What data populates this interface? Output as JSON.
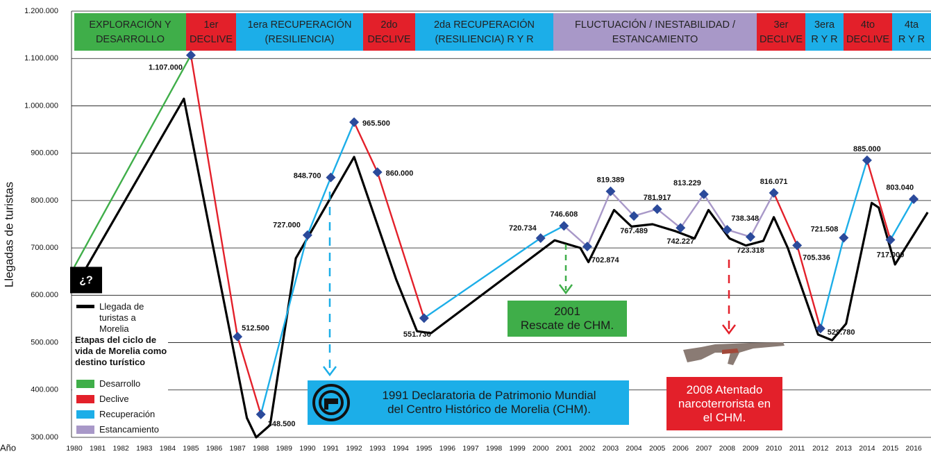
{
  "chart_data": {
    "type": "line",
    "y_label": "Llegadas de turistas",
    "x_label": "Año",
    "xlim": [
      1979.6,
      2016.7
    ],
    "xticks": [
      1980,
      1981,
      1982,
      1983,
      1984,
      1985,
      1986,
      1987,
      1988,
      1989,
      1990,
      1991,
      1992,
      1993,
      1994,
      1995,
      1996,
      1997,
      1998,
      1999,
      2000,
      2001,
      2002,
      2003,
      2004,
      2005,
      2006,
      2007,
      2008,
      2009,
      2010,
      2011,
      2012,
      2013,
      2014,
      2015,
      2016
    ],
    "ylim": [
      300000,
      1200000
    ],
    "yticks": [
      {
        "value": 300000,
        "label": "300.000"
      },
      {
        "value": 400000,
        "label": "400.000"
      },
      {
        "value": 500000,
        "label": "500.000"
      },
      {
        "value": 600000,
        "label": "600.000"
      },
      {
        "value": 700000,
        "label": "700.000"
      },
      {
        "value": 800000,
        "label": "800.000"
      },
      {
        "value": 900000,
        "label": "900.000"
      },
      {
        "value": 1000000,
        "label": "1.000.000"
      },
      {
        "value": 1100000,
        "label": "1.100.000"
      },
      {
        "value": 1200000,
        "label": "1.200.000"
      }
    ],
    "grid": true,
    "series": [
      {
        "name": "Llegada de turistas a Morelia",
        "color": "#000000",
        "x": [
          1980.3,
          1984.7,
          1987.4,
          1987.8,
          1988.4,
          1989.5,
          1992.0,
          1993.8,
          1994.7,
          1995.3,
          2000.6,
          2001.7,
          2002.05,
          2003.15,
          2003.9,
          2004.8,
          2005.8,
          2006.6,
          2007.2,
          2008.1,
          2008.8,
          2009.55,
          2010.0,
          2010.6,
          2011.9,
          2012.5,
          2013.1,
          2014.2,
          2014.5,
          2015.2,
          2016.6
        ],
        "values": [
          640000,
          1015000,
          341000,
          300000,
          326000,
          678000,
          892000,
          634000,
          524000,
          520000,
          716000,
          700000,
          670000,
          780000,
          745000,
          750000,
          735000,
          720000,
          780000,
          720000,
          705000,
          715000,
          765000,
          700000,
          517000,
          505000,
          540000,
          795000,
          785000,
          665000,
          775000
        ]
      },
      {
        "marker_color": "#2b4a9b",
        "x": [
          1980,
          1985,
          1987,
          1988,
          1990,
          1991,
          1992,
          1993,
          1995,
          2000,
          2001,
          2002,
          2003,
          2004,
          2005,
          2006,
          2007,
          2008,
          2009,
          2010,
          2011,
          2012,
          2013,
          2014,
          2015,
          2016
        ],
        "values": [
          660000,
          1107000,
          512500,
          348500,
          727000,
          848700,
          965500,
          860000,
          551736,
          720734,
          746608,
          702874,
          819389,
          767489,
          781917,
          742227,
          813229,
          738348,
          723318,
          816071,
          705336,
          529780,
          721508,
          885000,
          717000,
          803040
        ],
        "value_labels": [
          null,
          "1.107.000",
          "512.500",
          "348.500",
          "727.000",
          "848.700",
          "965.500",
          "860.000",
          "551.736",
          "720.734",
          "746.608",
          "702.874",
          "819.389",
          "767.489",
          "781.917",
          "742.227",
          "813.229",
          "738.348",
          "723.318",
          "816.071",
          "705.336",
          "529.780",
          "721.508",
          "885.000",
          "717.000",
          "803.040"
        ],
        "segment_colors": [
          "#3fae49",
          "#e3202a",
          "#e3202a",
          "#1caee8",
          "#1caee8",
          "#1caee8",
          "#e3202a",
          "#e3202a",
          "#1caee8",
          "#1caee8",
          "#a898c8",
          "#a898c8",
          "#a898c8",
          "#a898c8",
          "#a898c8",
          "#a898c8",
          "#a898c8",
          "#a898c8",
          "#a898c8",
          "#e3202a",
          "#e3202a",
          "#1caee8",
          "#1caee8",
          "#e3202a",
          "#1caee8"
        ]
      }
    ],
    "legend": {
      "title": "Etapas del ciclo de vida de Morelia como destino turístico",
      "items": [
        {
          "label": "Desarrollo",
          "color": "#3fae49"
        },
        {
          "label": "Declive",
          "color": "#e3202a"
        },
        {
          "label": "Recuperación",
          "color": "#1caee8"
        },
        {
          "label": "Estancamiento",
          "color": "#a898c8"
        }
      ]
    },
    "stages": [
      {
        "lines": [
          "EXPLORACIÓN Y",
          "DESARROLLO"
        ],
        "color": "#3fae49"
      },
      {
        "lines": [
          "1er",
          "DECLIVE"
        ],
        "color": "#e3202a"
      },
      {
        "lines": [
          "1era RECUPERACIÓN",
          "(RESILIENCIA)"
        ],
        "color": "#1caee8"
      },
      {
        "lines": [
          "2do",
          "DECLIVE"
        ],
        "color": "#e3202a"
      },
      {
        "lines": [
          "2da RECUPERACIÓN",
          "(RESILIENCIA) R Y R"
        ],
        "color": "#1caee8"
      },
      {
        "lines": [
          "FLUCTUACIÓN / INESTABILIDAD /",
          "ESTANCAMIENTO"
        ],
        "color": "#a898c8"
      },
      {
        "lines": [
          "3er",
          "DECLIVE"
        ],
        "color": "#e3202a"
      },
      {
        "lines": [
          "3era",
          "R Y R"
        ],
        "color": "#1caee8"
      },
      {
        "lines": [
          "4to",
          "DECLIVE"
        ],
        "color": "#e3202a"
      },
      {
        "lines": [
          "4ta",
          "R Y R"
        ],
        "color": "#1caee8"
      }
    ],
    "annotations": {
      "unknown": "¿?",
      "rescate": [
        "2001",
        "Rescate de CHM."
      ],
      "declaratoria": [
        "1991 Declaratoria de Patrimonio Mundial",
        "del Centro Histórico de Morelia (CHM)."
      ],
      "atentado": [
        "2008 Atentado",
        "narcoterrorista en",
        "el CHM."
      ]
    }
  }
}
